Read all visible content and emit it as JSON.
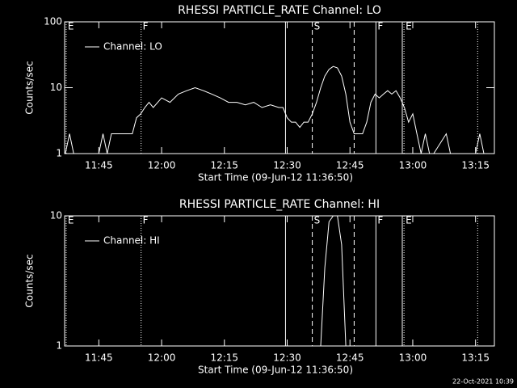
{
  "chart_data": [
    {
      "type": "line",
      "title": "RHESSI PARTICLE_RATE Channel: LO",
      "xlabel": "Start Time (09-Jun-12 11:36:50)",
      "ylabel": "Counts/sec",
      "ylog": true,
      "xlim": [
        696.83,
        799.5
      ],
      "xticks": [
        {
          "value": 705,
          "label": "11:45"
        },
        {
          "value": 720,
          "label": "12:00"
        },
        {
          "value": 735,
          "label": "12:15"
        },
        {
          "value": 750,
          "label": "12:30"
        },
        {
          "value": 765,
          "label": "12:45"
        },
        {
          "value": 780,
          "label": "13:00"
        },
        {
          "value": 795,
          "label": "13:15"
        }
      ],
      "ylim": [
        1,
        100
      ],
      "yticks": [
        1,
        10,
        100
      ],
      "x": [
        697,
        698,
        699,
        704,
        705,
        706,
        707,
        708,
        709,
        710,
        711,
        712,
        713,
        714,
        715,
        716,
        717,
        718,
        720,
        722,
        724,
        726,
        728,
        730,
        732,
        734,
        736,
        738,
        740,
        742,
        744,
        746,
        748,
        749,
        750,
        751,
        752,
        753,
        754,
        755,
        756,
        757,
        758,
        759,
        760,
        761,
        762,
        763,
        764,
        765,
        766,
        767,
        768,
        769,
        770,
        771,
        772,
        773,
        774,
        775,
        776,
        777,
        778,
        779,
        780,
        781,
        782,
        783,
        784,
        785,
        788,
        789,
        795,
        796,
        797,
        799
      ],
      "series": [
        {
          "name": "Channel: LO",
          "color": "#ffffff",
          "values": [
            1,
            2,
            1,
            1,
            1,
            2,
            1,
            2,
            2,
            2,
            2,
            2,
            2,
            3.5,
            4,
            5,
            6,
            5,
            7,
            6,
            8,
            9,
            10,
            9,
            8,
            7,
            6,
            6,
            5.5,
            6,
            5,
            5.5,
            5,
            5,
            3.5,
            3,
            3,
            2.5,
            3,
            3,
            4,
            6,
            10,
            15,
            19,
            21,
            20,
            15,
            8,
            3,
            2,
            2,
            2,
            3,
            6,
            8,
            7,
            8,
            9,
            8,
            9,
            7,
            5,
            3,
            4,
            2,
            1,
            2,
            1,
            1,
            2,
            1,
            1,
            2,
            1,
            1
          ]
        }
      ],
      "markers": [
        {
          "x": 697.2,
          "style": "dotted",
          "label": "E"
        },
        {
          "x": 715.1,
          "style": "dotted",
          "label": "F"
        },
        {
          "x": 749.6,
          "style": "solid"
        },
        {
          "x": 756,
          "style": "dashed",
          "label": "S"
        },
        {
          "x": 766,
          "style": "dashed"
        },
        {
          "x": 771.2,
          "style": "solid",
          "label": "F"
        },
        {
          "x": 777.5,
          "style": "solid"
        },
        {
          "x": 777.9,
          "style": "dotted",
          "label": "E"
        },
        {
          "x": 795.5,
          "style": "dotted"
        }
      ]
    },
    {
      "type": "line",
      "title": "RHESSI PARTICLE_RATE Channel: HI",
      "xlabel": "Start Time (09-Jun-12 11:36:50)",
      "ylabel": "Counts/sec",
      "ylog": true,
      "xlim": [
        696.83,
        799.5
      ],
      "xticks": [
        {
          "value": 705,
          "label": "11:45"
        },
        {
          "value": 720,
          "label": "12:00"
        },
        {
          "value": 735,
          "label": "12:15"
        },
        {
          "value": 750,
          "label": "12:30"
        },
        {
          "value": 765,
          "label": "12:45"
        },
        {
          "value": 780,
          "label": "13:00"
        },
        {
          "value": 795,
          "label": "13:15"
        }
      ],
      "ylim": [
        1,
        10
      ],
      "yticks": [
        1,
        10
      ],
      "x": [
        697,
        757,
        758,
        759,
        760,
        761,
        762,
        763,
        764,
        799
      ],
      "series": [
        {
          "name": "Channel: HI",
          "color": "#ffffff",
          "values": [
            1,
            1,
            1,
            4,
            9,
            10,
            10,
            6,
            1,
            1
          ]
        }
      ],
      "markers": [
        {
          "x": 697.2,
          "style": "dotted",
          "label": "E"
        },
        {
          "x": 715.1,
          "style": "dotted",
          "label": "F"
        },
        {
          "x": 749.6,
          "style": "solid"
        },
        {
          "x": 756,
          "style": "dashed",
          "label": "S"
        },
        {
          "x": 766,
          "style": "dashed"
        },
        {
          "x": 771.2,
          "style": "solid",
          "label": "F"
        },
        {
          "x": 777.5,
          "style": "solid"
        },
        {
          "x": 777.9,
          "style": "dotted",
          "label": "E"
        },
        {
          "x": 795.5,
          "style": "dotted"
        }
      ]
    }
  ],
  "footer": "22-Oct-2021 10:39"
}
